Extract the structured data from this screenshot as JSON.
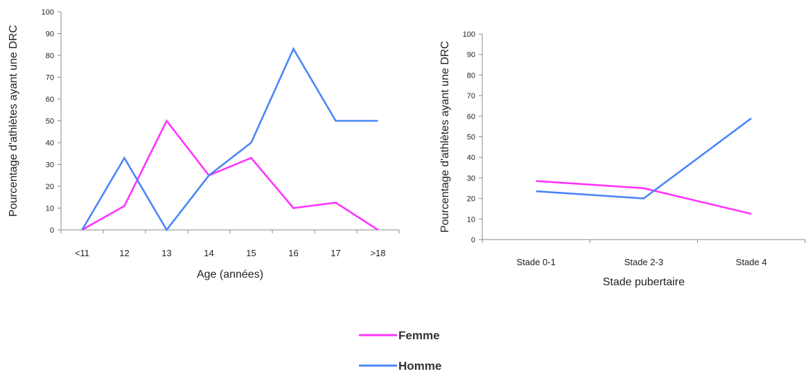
{
  "chart_data": [
    {
      "type": "line",
      "xlabel": "Age (années)",
      "ylabel": "Pourcentage d'athlètes ayant une DRC",
      "categories": [
        "<11",
        "12",
        "13",
        "14",
        "15",
        "16",
        "17",
        ">18"
      ],
      "ylim": [
        0,
        100
      ],
      "yticks": [
        0,
        10,
        20,
        30,
        40,
        50,
        60,
        70,
        80,
        90,
        100
      ],
      "grid": false,
      "series": [
        {
          "name": "Femme",
          "color": "#ff33ff",
          "values": [
            0,
            11,
            50,
            25,
            33,
            10,
            12.5,
            0
          ]
        },
        {
          "name": "Homme",
          "color": "#4a86f7",
          "values": [
            0,
            33,
            0,
            25,
            40,
            83,
            50,
            50
          ]
        }
      ]
    },
    {
      "type": "line",
      "xlabel": "Stade pubertaire",
      "ylabel": "Pourcentage d'athlètes ayant une DRC",
      "categories": [
        "Stade 0-1",
        "Stade 2-3",
        "Stade 4"
      ],
      "ylim": [
        0,
        100
      ],
      "yticks": [
        0,
        10,
        20,
        30,
        40,
        50,
        60,
        70,
        80,
        90,
        100
      ],
      "grid": false,
      "series": [
        {
          "name": "Femme",
          "color": "#ff33ff",
          "values": [
            28.5,
            25,
            12.5
          ]
        },
        {
          "name": "Homme",
          "color": "#4a86f7",
          "values": [
            23.5,
            20,
            59
          ]
        }
      ]
    }
  ],
  "legend": {
    "placement": "bottom-center",
    "items": [
      {
        "label": "Femme",
        "color": "#ff33ff"
      },
      {
        "label": "Homme",
        "color": "#4a86f7"
      }
    ]
  }
}
